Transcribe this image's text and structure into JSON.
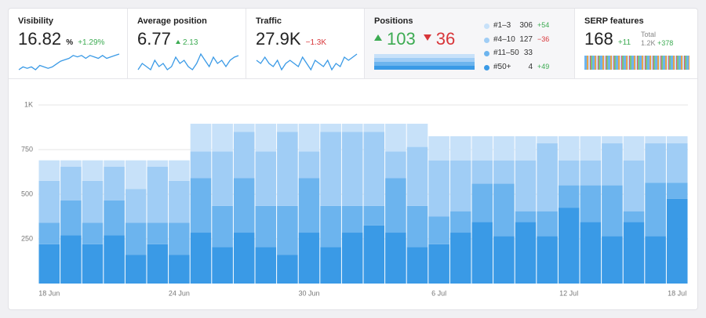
{
  "cards": [
    {
      "title": "Visibility",
      "value": 16.82,
      "unit": "%",
      "change": "+1.29%",
      "sparkline": [
        2,
        3,
        2.5,
        3,
        2,
        3.5,
        3,
        2.5,
        3,
        4,
        5,
        5.5,
        6,
        7,
        6.5,
        7,
        6,
        7,
        6.5,
        6,
        7,
        6,
        6.5,
        7,
        7.5
      ]
    },
    {
      "title": "Average position",
      "value": 6.77,
      "change": "2.13",
      "sparkline": [
        2,
        4,
        3,
        2,
        5,
        3,
        4,
        2,
        3,
        6,
        4,
        5,
        3,
        2,
        4,
        7,
        5,
        3,
        6,
        4,
        5,
        3,
        5,
        6,
        6.5
      ]
    },
    {
      "title": "Traffic",
      "value": "27.9K",
      "change": "−1.3K",
      "sparkline": [
        6,
        5,
        7,
        5,
        4,
        6,
        3,
        5,
        6,
        5,
        4,
        7,
        5,
        3,
        6,
        5,
        4,
        6,
        3,
        5,
        4,
        7,
        6,
        7,
        8
      ]
    }
  ],
  "positions": {
    "title": "Positions",
    "up": 103,
    "down": 36,
    "rows": [
      {
        "label": "#1–3",
        "value": 306,
        "change": "+54",
        "color": "#c7e1f9"
      },
      {
        "label": "#4–10",
        "value": 127,
        "change": "−36",
        "color": "#a0cdf5"
      },
      {
        "label": "#11–50",
        "value": 33,
        "color": "#6cb4ee"
      },
      {
        "label": "#50+",
        "value": 4,
        "change": "+49",
        "color": "#3a9ae6"
      }
    ]
  },
  "serp": {
    "title": "SERP features",
    "value": 168,
    "change": "+11",
    "total_label": "Total",
    "total": "1.2K",
    "total_change": "+378"
  },
  "chart_data": {
    "type": "stacked-bar",
    "categories": [
      "18 Jun",
      null,
      null,
      null,
      null,
      null,
      "24 Jun",
      null,
      null,
      null,
      null,
      null,
      "30 Jun",
      null,
      null,
      null,
      null,
      null,
      "6 Jul",
      null,
      null,
      null,
      null,
      null,
      "12 Jul",
      null,
      null,
      null,
      null,
      "18 Jul"
    ],
    "series": [
      {
        "color": "#3a9ae6",
        "values": [
          220,
          270,
          220,
          270,
          160,
          220,
          160,
          285,
          205,
          285,
          205,
          160,
          285,
          205,
          285,
          325,
          285,
          205,
          220,
          285,
          345,
          265,
          345,
          265,
          425,
          345,
          265,
          345,
          265,
          475
        ]
      },
      {
        "color": "#6cb4ee",
        "values": [
          120,
          195,
          120,
          195,
          180,
          120,
          180,
          305,
          230,
          305,
          230,
          275,
          305,
          230,
          150,
          110,
          305,
          230,
          155,
          120,
          215,
          295,
          60,
          140,
          125,
          205,
          285,
          60,
          300,
          90
        ]
      },
      {
        "color": "#a0cdf5",
        "values": [
          235,
          190,
          235,
          190,
          190,
          315,
          235,
          150,
          305,
          260,
          305,
          415,
          150,
          415,
          415,
          415,
          150,
          330,
          315,
          285,
          130,
          130,
          285,
          380,
          140,
          140,
          235,
          285,
          220,
          220
        ]
      },
      {
        "color": "#c7e1f9",
        "values": [
          115,
          35,
          115,
          35,
          160,
          35,
          115,
          155,
          155,
          45,
          155,
          45,
          155,
          45,
          45,
          45,
          155,
          130,
          135,
          135,
          135,
          135,
          135,
          40,
          135,
          135,
          40,
          135,
          40,
          40
        ]
      }
    ],
    "ylim": [
      0,
      1000
    ],
    "yticks": [
      {
        "value": 1000,
        "label": "1K"
      },
      750,
      500,
      250
    ],
    "grid": true
  }
}
